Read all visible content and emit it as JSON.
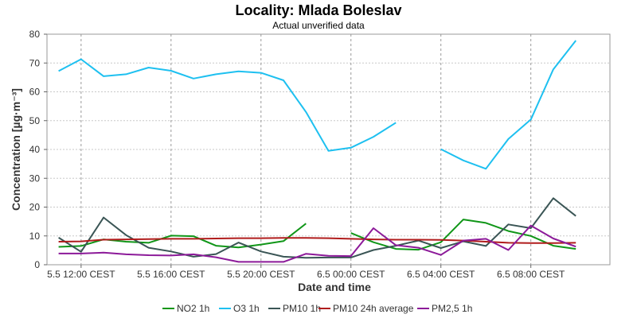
{
  "chart_data": {
    "type": "line",
    "title": "Locality: Mlada Boleslav",
    "subtitle": "Actual unverified data",
    "xlabel": "Date and time",
    "ylabel": "Concentration [µg·m⁻³]",
    "ylim": [
      0,
      80
    ],
    "yticks": [
      "0",
      "10",
      "20",
      "30",
      "40",
      "50",
      "60",
      "70",
      "80"
    ],
    "xlim": [
      "5.5 11:00",
      "6.5 11:00"
    ],
    "xticks": [
      {
        "t": "5.5 12:00",
        "label": "5.5 12:00 CEST"
      },
      {
        "t": "5.5 16:00",
        "label": "5.5 16:00 CEST"
      },
      {
        "t": "5.5 20:00",
        "label": "5.5 20:00 CEST"
      },
      {
        "t": "6.5 00:00",
        "label": "6.5 00:00 CEST"
      },
      {
        "t": "6.5 04:00",
        "label": "6.5 04:00 CEST"
      },
      {
        "t": "6.5 08:00",
        "label": "6.5 08:00 CEST"
      }
    ],
    "grid": true,
    "legend_position": "bottom",
    "x": [
      "5.5 11:00",
      "5.5 12:00",
      "5.5 13:00",
      "5.5 14:00",
      "5.5 15:00",
      "5.5 16:00",
      "5.5 17:00",
      "5.5 18:00",
      "5.5 19:00",
      "5.5 20:00",
      "5.5 21:00",
      "5.5 22:00",
      "5.5 23:00",
      "6.5 00:00",
      "6.5 01:00",
      "6.5 02:00",
      "6.5 03:00",
      "6.5 04:00",
      "6.5 05:00",
      "6.5 06:00",
      "6.5 07:00",
      "6.5 08:00",
      "6.5 09:00",
      "6.5 10:00"
    ],
    "series": [
      {
        "name": "NO2 1h",
        "color": "#109618",
        "values": [
          6.2,
          6.5,
          8.8,
          8.0,
          7.6,
          10.1,
          9.9,
          6.6,
          6.0,
          7.0,
          8.2,
          14.3,
          null,
          11.0,
          7.8,
          5.5,
          5.2,
          7.8,
          15.7,
          14.5,
          11.7,
          10.0,
          6.6,
          5.5
        ]
      },
      {
        "name": "O3 1h",
        "color": "#1ec0f0",
        "values": [
          67.2,
          71.3,
          65.4,
          66.1,
          68.4,
          67.3,
          64.6,
          66.1,
          67.1,
          66.6,
          64.0,
          53.0,
          39.5,
          40.6,
          44.4,
          49.3,
          null,
          40.1,
          36.2,
          33.3,
          43.6,
          50.4,
          67.8,
          77.8
        ]
      },
      {
        "name": "PM10 1h",
        "color": "#3a5555",
        "values": [
          9.4,
          4.5,
          16.4,
          10.3,
          5.9,
          4.6,
          2.8,
          3.7,
          7.7,
          4.6,
          2.8,
          2.4,
          2.5,
          2.5,
          5.1,
          6.6,
          8.4,
          5.8,
          8.1,
          6.5,
          14.0,
          12.7,
          23.1,
          16.9
        ]
      },
      {
        "name": "PM10 24h average",
        "color": "#b01c1c",
        "values": [
          8.0,
          8.1,
          8.7,
          8.8,
          8.9,
          9.0,
          9.0,
          9.1,
          9.2,
          9.2,
          9.3,
          9.3,
          9.2,
          9.0,
          8.8,
          8.7,
          8.7,
          8.6,
          8.4,
          8.0,
          7.6,
          7.5,
          7.5,
          7.6
        ]
      },
      {
        "name": "PM2,5 1h",
        "color": "#8c1a99",
        "values": [
          3.9,
          3.9,
          4.2,
          3.6,
          3.3,
          3.2,
          3.6,
          2.6,
          1.0,
          1.0,
          1.0,
          3.8,
          3.1,
          3.0,
          12.7,
          6.8,
          5.9,
          3.4,
          8.4,
          9.0,
          5.1,
          13.6,
          9.1,
          6.3
        ]
      }
    ]
  }
}
